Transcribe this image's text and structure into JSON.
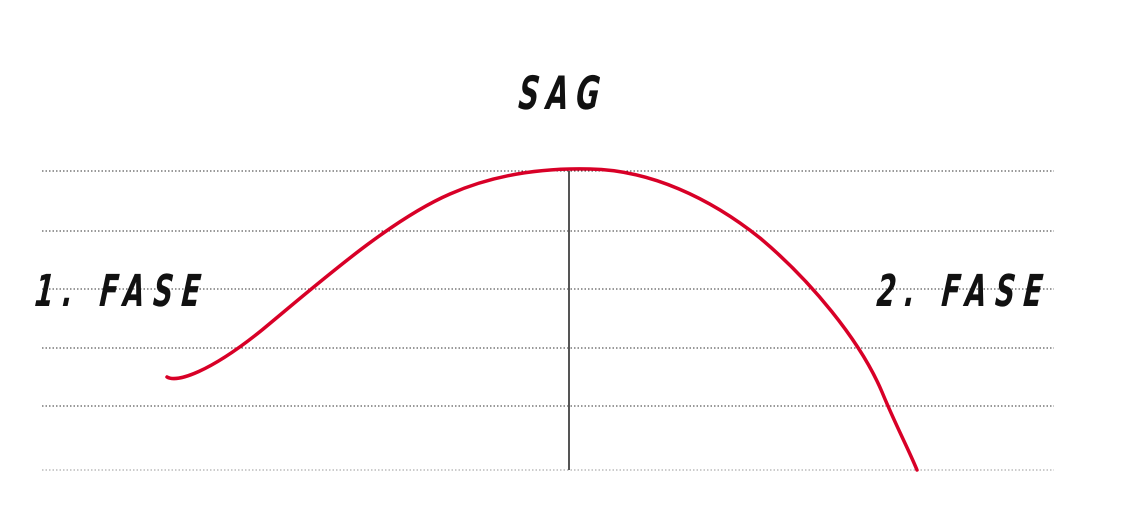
{
  "labels": {
    "peak": "SAG",
    "phase_1": "1. FASE",
    "phase_2": "2. FASE"
  },
  "colors": {
    "curve": "#d80027",
    "gridline": "#333333",
    "center_line": "#555555",
    "text": "#111111"
  }
}
